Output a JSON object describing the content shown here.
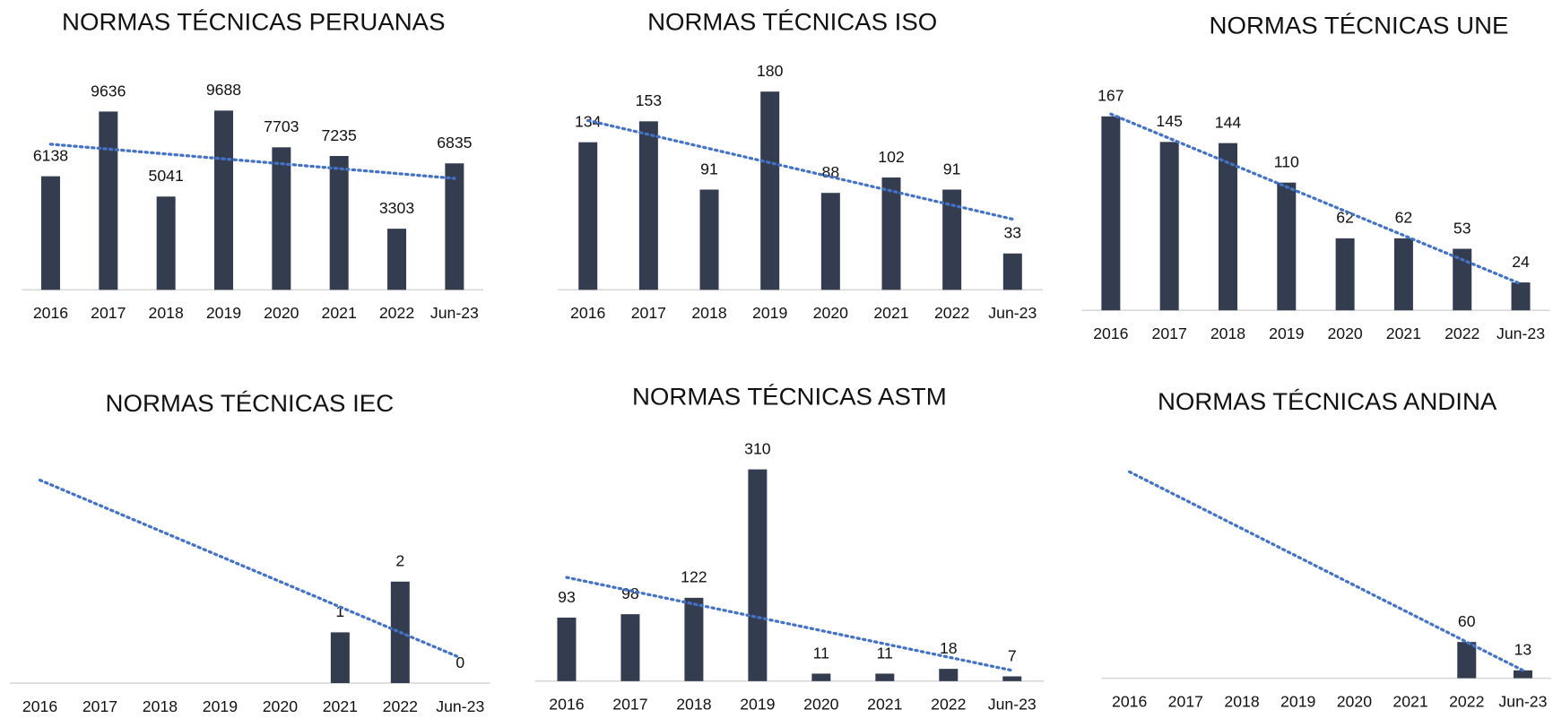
{
  "chart_data": [
    {
      "type": "bar",
      "title": "NORMAS TÉCNICAS PERUANAS",
      "categories": [
        "2016",
        "2017",
        "2018",
        "2019",
        "2020",
        "2021",
        "2022",
        "Jun-23"
      ],
      "values": [
        6138,
        9636,
        5041,
        9688,
        7703,
        7235,
        3303,
        6835
      ],
      "ylim": [
        0,
        12500
      ],
      "color": "#333d4f",
      "trendline": "linear",
      "trendline_color": "#4472c4"
    },
    {
      "type": "bar",
      "title": "NORMAS TÉCNICAS ISO",
      "categories": [
        "2016",
        "2017",
        "2018",
        "2019",
        "2020",
        "2021",
        "2022",
        "Jun-23"
      ],
      "values": [
        134,
        153,
        91,
        180,
        88,
        102,
        91,
        33
      ],
      "ylim": [
        0,
        210
      ],
      "color": "#333d4f",
      "trendline": "linear",
      "trendline_color": "#4472c4"
    },
    {
      "type": "bar",
      "title": "NORMAS TÉCNICAS UNE",
      "categories": [
        "2016",
        "2017",
        "2018",
        "2019",
        "2020",
        "2021",
        "2022",
        "Jun-23"
      ],
      "values": [
        167,
        145,
        144,
        110,
        62,
        62,
        53,
        24
      ],
      "ylim": [
        0,
        200
      ],
      "color": "#333d4f",
      "trendline": "linear",
      "trendline_color": "#4472c4"
    },
    {
      "type": "bar",
      "title": "NORMAS TÉCNICAS IEC",
      "categories": [
        "2016",
        "2017",
        "2018",
        "2019",
        "2020",
        "2021",
        "2022",
        "Jun-23"
      ],
      "values": [
        null,
        null,
        null,
        null,
        null,
        1,
        2,
        0
      ],
      "ylim": [
        0,
        5
      ],
      "color": "#333d4f",
      "trendline": "linear",
      "trendline_color": "#4472c4"
    },
    {
      "type": "bar",
      "title": "NORMAS TÉCNICAS ASTM",
      "categories": [
        "2016",
        "2017",
        "2018",
        "2019",
        "2020",
        "2021",
        "2022",
        "Jun-23"
      ],
      "values": [
        93,
        98,
        122,
        310,
        11,
        11,
        18,
        7
      ],
      "ylim": [
        0,
        340
      ],
      "color": "#333d4f",
      "trendline": "linear",
      "trendline_color": "#4472c4"
    },
    {
      "type": "bar",
      "title": "NORMAS TÉCNICAS ANDINA",
      "categories": [
        "2016",
        "2017",
        "2018",
        "2019",
        "2020",
        "2021",
        "2022",
        "Jun-23"
      ],
      "values": [
        null,
        null,
        null,
        null,
        null,
        null,
        60,
        13
      ],
      "ylim": [
        0,
        380
      ],
      "color": "#333d4f",
      "trendline": "linear",
      "trendline_color": "#4472c4"
    }
  ]
}
